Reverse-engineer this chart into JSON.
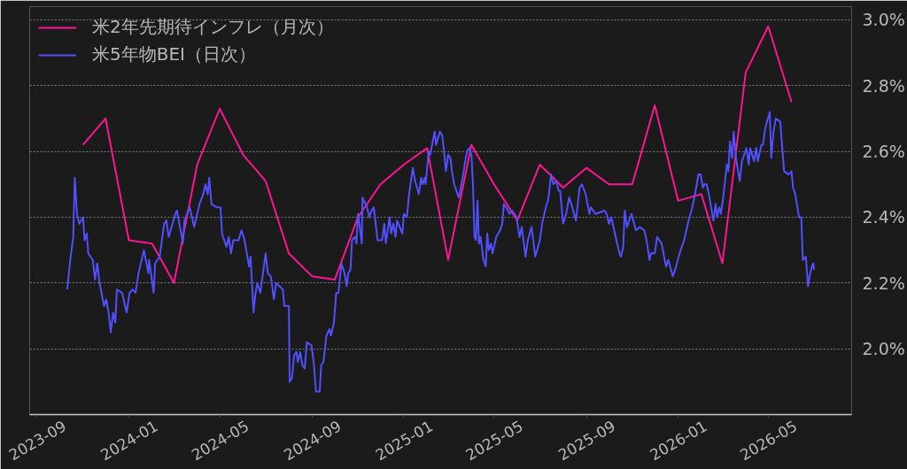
{
  "chart_data": {
    "type": "line",
    "legend": "top left",
    "grid": "y",
    "xlim": [
      "2023-08-22",
      "2026-08-20"
    ],
    "ylim": [
      1.8,
      3.04
    ],
    "xticks": [
      "2023-09",
      "2024-01",
      "2024-05",
      "2024-09",
      "2025-01",
      "2025-05",
      "2025-09",
      "2026-01",
      "2026-05"
    ],
    "yticks": [
      {
        "value": 2.0,
        "label": "2.0%"
      },
      {
        "value": 2.2,
        "label": "2.2%"
      },
      {
        "value": 2.4,
        "label": "2.4%"
      },
      {
        "value": 2.6,
        "label": "2.6%"
      },
      {
        "value": 2.8,
        "label": "2.8%"
      },
      {
        "value": 3.0,
        "label": "3.0%"
      }
    ],
    "series": [
      {
        "name": "米2年先期待インフレ（月次）",
        "color": "#ff1493",
        "x": [
          "2023-11-01",
          "2023-12-01",
          "2024-01-01",
          "2024-02-01",
          "2024-03-01",
          "2024-04-01",
          "2024-05-01",
          "2024-06-01",
          "2024-07-01",
          "2024-08-01",
          "2024-09-01",
          "2024-10-01",
          "2024-11-01",
          "2024-12-01",
          "2025-01-01",
          "2025-02-01",
          "2025-03-01",
          "2025-04-01",
          "2025-05-01",
          "2025-06-01",
          "2025-07-01",
          "2025-08-01",
          "2025-09-01",
          "2025-10-01",
          "2025-11-01",
          "2025-12-01",
          "2026-01-01",
          "2026-02-01",
          "2026-03-01",
          "2026-04-01",
          "2026-05-01",
          "2026-06-01"
        ],
        "values": [
          2.62,
          2.7,
          2.33,
          2.32,
          2.2,
          2.56,
          2.73,
          2.59,
          2.51,
          2.29,
          2.22,
          2.21,
          2.4,
          2.5,
          2.56,
          2.61,
          2.27,
          2.62,
          2.5,
          2.39,
          2.56,
          2.49,
          2.55,
          2.5,
          2.5,
          2.74,
          2.45,
          2.47,
          2.26,
          2.84,
          2.98,
          2.75
        ]
      },
      {
        "name": "米5年物BEI（日次）",
        "color": "#5050ff",
        "x": [
          "2023-10-11",
          "2023-10-15",
          "2023-10-19",
          "2023-10-21",
          "2023-10-24",
          "2023-10-27",
          "2023-11-01",
          "2023-11-03",
          "2023-11-06",
          "2023-11-08",
          "2023-11-14",
          "2023-11-17",
          "2023-11-20",
          "2023-11-23",
          "2023-11-29",
          "2023-12-02",
          "2023-12-05",
          "2023-12-08",
          "2023-12-11",
          "2023-12-14",
          "2023-12-16",
          "2023-12-23",
          "2023-12-29",
          "2024-01-02",
          "2024-01-06",
          "2024-01-10",
          "2024-01-14",
          "2024-01-21",
          "2024-01-27",
          "2024-01-28",
          "2024-02-03",
          "2024-02-05",
          "2024-02-11",
          "2024-02-17",
          "2024-02-20",
          "2024-02-23",
          "2024-03-03",
          "2024-03-05",
          "2024-03-13",
          "2024-03-15",
          "2024-03-22",
          "2024-03-28",
          "2024-04-04",
          "2024-04-09",
          "2024-04-12",
          "2024-04-15",
          "2024-04-17",
          "2024-04-20",
          "2024-04-27",
          "2024-05-02",
          "2024-05-04",
          "2024-05-10",
          "2024-05-13",
          "2024-05-16",
          "2024-05-19",
          "2024-05-26",
          "2024-05-30",
          "2024-06-03",
          "2024-06-09",
          "2024-06-11",
          "2024-06-15",
          "2024-06-17",
          "2024-06-20",
          "2024-06-24",
          "2024-07-01",
          "2024-07-04",
          "2024-07-08",
          "2024-07-12",
          "2024-07-15",
          "2024-07-24",
          "2024-07-26",
          "2024-08-01",
          "2024-08-02",
          "2024-08-05",
          "2024-08-08",
          "2024-08-11",
          "2024-08-13",
          "2024-08-16",
          "2024-08-19",
          "2024-08-22",
          "2024-08-25",
          "2024-08-31",
          "2024-09-03",
          "2024-09-06",
          "2024-09-09",
          "2024-09-11",
          "2024-09-13",
          "2024-09-16",
          "2024-09-20",
          "2024-09-24",
          "2024-09-26",
          "2024-09-30",
          "2024-10-03",
          "2024-10-06",
          "2024-10-10",
          "2024-10-14",
          "2024-10-17",
          "2024-10-19",
          "2024-10-22",
          "2024-10-24",
          "2024-10-28",
          "2024-10-30",
          "2024-11-01",
          "2024-11-04",
          "2024-11-06",
          "2024-11-07",
          "2024-11-13",
          "2024-11-16",
          "2024-11-19",
          "2024-11-22",
          "2024-11-27",
          "2024-12-03",
          "2024-12-06",
          "2024-12-08",
          "2024-12-13",
          "2024-12-15",
          "2024-12-18",
          "2024-12-21",
          "2024-12-23",
          "2024-12-30",
          "2025-01-01",
          "2025-01-05",
          "2025-01-08",
          "2025-01-13",
          "2025-01-16",
          "2025-01-21",
          "2025-01-24",
          "2025-01-26",
          "2025-01-29",
          "2025-01-30",
          "2025-02-03",
          "2025-02-05",
          "2025-02-11",
          "2025-02-13",
          "2025-02-18",
          "2025-02-21",
          "2025-02-23",
          "2025-02-26",
          "2025-03-01",
          "2025-03-04",
          "2025-03-06",
          "2025-03-09",
          "2025-03-15",
          "2025-03-17",
          "2025-03-21",
          "2025-03-23",
          "2025-03-26",
          "2025-03-29",
          "2025-04-01",
          "2025-04-03",
          "2025-04-05",
          "2025-04-07",
          "2025-04-09",
          "2025-04-11",
          "2025-04-13",
          "2025-04-17",
          "2025-04-20",
          "2025-04-22",
          "2025-04-24",
          "2025-04-27",
          "2025-04-29",
          "2025-05-04",
          "2025-05-09",
          "2025-05-12",
          "2025-05-14",
          "2025-05-17",
          "2025-05-22",
          "2025-05-25",
          "2025-05-31",
          "2025-06-04",
          "2025-06-07",
          "2025-06-12",
          "2025-06-15",
          "2025-06-20",
          "2025-06-25",
          "2025-07-01",
          "2025-07-04",
          "2025-07-10",
          "2025-07-12",
          "2025-07-16",
          "2025-07-19",
          "2025-07-23",
          "2025-07-26",
          "2025-07-28",
          "2025-08-01",
          "2025-08-05",
          "2025-08-09",
          "2025-08-12",
          "2025-08-18",
          "2025-08-23",
          "2025-08-26",
          "2025-08-31",
          "2025-09-05",
          "2025-09-07",
          "2025-09-13",
          "2025-09-25",
          "2025-09-28",
          "2025-10-01",
          "2025-10-04",
          "2025-10-09",
          "2025-10-11",
          "2025-10-15",
          "2025-10-17",
          "2025-10-20",
          "2025-10-22",
          "2025-10-25",
          "2025-10-31",
          "2025-11-06",
          "2025-11-11",
          "2025-11-17",
          "2025-11-20",
          "2025-11-24",
          "2025-11-26",
          "2025-12-01",
          "2025-12-04",
          "2025-12-10",
          "2025-12-16",
          "2025-12-19",
          "2025-12-25",
          "2025-12-28",
          "2026-01-03",
          "2026-01-09",
          "2026-01-15",
          "2026-01-20",
          "2026-01-26",
          "2026-01-28",
          "2026-01-31",
          "2026-02-03",
          "2026-02-05",
          "2026-02-08",
          "2026-02-11",
          "2026-02-17",
          "2026-02-20",
          "2026-02-22",
          "2026-02-25",
          "2026-02-27",
          "2026-03-02",
          "2026-03-07",
          "2026-03-09",
          "2026-03-11",
          "2026-03-14",
          "2026-03-16",
          "2026-03-19",
          "2026-03-24",
          "2026-03-27",
          "2026-04-02",
          "2026-04-05",
          "2026-04-07",
          "2026-04-12",
          "2026-04-15",
          "2026-04-17",
          "2026-04-22",
          "2026-04-24",
          "2026-04-27",
          "2026-05-03",
          "2026-05-05",
          "2026-05-08",
          "2026-05-11",
          "2026-05-17",
          "2026-05-19",
          "2026-05-22",
          "2026-05-28",
          "2026-06-01",
          "2026-06-03",
          "2026-06-06",
          "2026-06-11",
          "2026-06-14",
          "2026-06-16",
          "2026-06-20",
          "2026-06-23",
          "2026-06-25",
          "2026-06-28",
          "2026-06-30",
          "2026-07-01"
        ],
        "values": [
          2.18,
          2.27,
          2.34,
          2.52,
          2.41,
          2.38,
          2.4,
          2.33,
          2.35,
          2.29,
          2.27,
          2.21,
          2.26,
          2.2,
          2.13,
          2.15,
          2.11,
          2.05,
          2.11,
          2.08,
          2.18,
          2.17,
          2.11,
          2.17,
          2.18,
          2.17,
          2.23,
          2.3,
          2.23,
          2.27,
          2.17,
          2.26,
          2.28,
          2.38,
          2.39,
          2.34,
          2.41,
          2.42,
          2.32,
          2.39,
          2.43,
          2.37,
          2.44,
          2.47,
          2.5,
          2.47,
          2.52,
          2.44,
          2.43,
          2.43,
          2.35,
          2.31,
          2.34,
          2.29,
          2.33,
          2.33,
          2.36,
          2.33,
          2.25,
          2.28,
          2.11,
          2.16,
          2.2,
          2.17,
          2.29,
          2.23,
          2.22,
          2.15,
          2.2,
          2.18,
          2.13,
          2.13,
          1.9,
          1.91,
          1.98,
          1.99,
          1.96,
          1.99,
          1.95,
          1.94,
          2.02,
          2.01,
          1.96,
          1.87,
          1.87,
          1.87,
          1.95,
          1.96,
          2.04,
          2.06,
          2.04,
          2.08,
          2.17,
          2.17,
          2.26,
          2.23,
          2.19,
          2.23,
          2.24,
          2.33,
          2.34,
          2.32,
          2.41,
          2.36,
          2.32,
          2.46,
          2.43,
          2.4,
          2.42,
          2.43,
          2.33,
          2.33,
          2.38,
          2.32,
          2.4,
          2.35,
          2.38,
          2.34,
          2.39,
          2.35,
          2.41,
          2.4,
          2.47,
          2.55,
          2.51,
          2.47,
          2.52,
          2.5,
          2.52,
          2.5,
          2.6,
          2.59,
          2.66,
          2.62,
          2.66,
          2.65,
          2.61,
          2.54,
          2.59,
          2.58,
          2.54,
          2.5,
          2.46,
          2.48,
          2.53,
          2.56,
          2.6,
          2.61,
          2.59,
          2.5,
          2.34,
          2.33,
          2.45,
          2.32,
          2.34,
          2.27,
          2.25,
          2.35,
          2.3,
          2.32,
          2.29,
          2.34,
          2.36,
          2.38,
          2.44,
          2.43,
          2.41,
          2.42,
          2.4,
          2.34,
          2.37,
          2.28,
          2.33,
          2.37,
          2.28,
          2.33,
          2.38,
          2.44,
          2.45,
          2.53,
          2.5,
          2.51,
          2.48,
          2.48,
          2.38,
          2.41,
          2.46,
          2.44,
          2.39,
          2.49,
          2.5,
          2.47,
          2.41,
          2.43,
          2.41,
          2.42,
          2.41,
          2.38,
          2.4,
          2.35,
          2.33,
          2.29,
          2.28,
          2.31,
          2.42,
          2.37,
          2.41,
          2.36,
          2.37,
          2.36,
          2.33,
          2.27,
          2.29,
          2.29,
          2.34,
          2.32,
          2.25,
          2.27,
          2.22,
          2.24,
          2.29,
          2.33,
          2.39,
          2.43,
          2.5,
          2.53,
          2.53,
          2.49,
          2.5,
          2.5,
          2.47,
          2.39,
          2.44,
          2.4,
          2.43,
          2.41,
          2.46,
          2.56,
          2.54,
          2.63,
          2.58,
          2.66,
          2.58,
          2.51,
          2.57,
          2.61,
          2.56,
          2.61,
          2.57,
          2.61,
          2.57,
          2.62,
          2.62,
          2.67,
          2.72,
          2.58,
          2.66,
          2.7,
          2.69,
          2.63,
          2.54,
          2.53,
          2.54,
          2.49,
          2.47,
          2.4,
          2.4,
          2.27,
          2.28,
          2.19,
          2.22,
          2.25,
          2.26,
          2.24
        ]
      }
    ]
  }
}
